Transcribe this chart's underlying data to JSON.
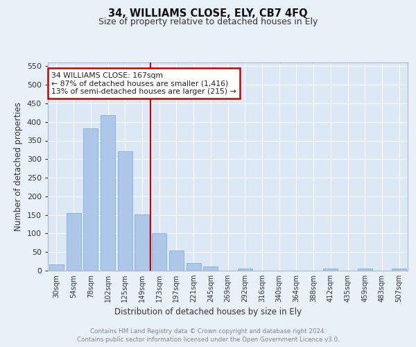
{
  "title": "34, WILLIAMS CLOSE, ELY, CB7 4FQ",
  "subtitle": "Size of property relative to detached houses in Ely",
  "xlabel": "Distribution of detached houses by size in Ely",
  "ylabel": "Number of detached properties",
  "bar_labels": [
    "30sqm",
    "54sqm",
    "78sqm",
    "102sqm",
    "125sqm",
    "149sqm",
    "173sqm",
    "197sqm",
    "221sqm",
    "245sqm",
    "269sqm",
    "292sqm",
    "316sqm",
    "340sqm",
    "364sqm",
    "388sqm",
    "412sqm",
    "435sqm",
    "459sqm",
    "483sqm",
    "507sqm"
  ],
  "bar_values": [
    16,
    155,
    383,
    418,
    321,
    152,
    100,
    55,
    20,
    12,
    0,
    5,
    0,
    0,
    0,
    0,
    5,
    0,
    5,
    0,
    5
  ],
  "bar_color": "#aec6e8",
  "bar_edge_color": "#6aaad4",
  "background_color": "#e8f0f8",
  "plot_bg_color": "#dce8f5",
  "vline_x": 5.5,
  "vline_color": "#cc0000",
  "annotation_line1": "34 WILLIAMS CLOSE: 167sqm",
  "annotation_line2": "← 87% of detached houses are smaller (1,416)",
  "annotation_line3": "13% of semi-detached houses are larger (215) →",
  "annotation_box_color": "#ffffff",
  "annotation_box_edge": "#cc0000",
  "ylim": [
    0,
    560
  ],
  "yticks": [
    0,
    50,
    100,
    150,
    200,
    250,
    300,
    350,
    400,
    450,
    500,
    550
  ],
  "footer_line1": "Contains HM Land Registry data © Crown copyright and database right 2024.",
  "footer_line2": "Contains public sector information licensed under the Open Government Licence v3.0."
}
